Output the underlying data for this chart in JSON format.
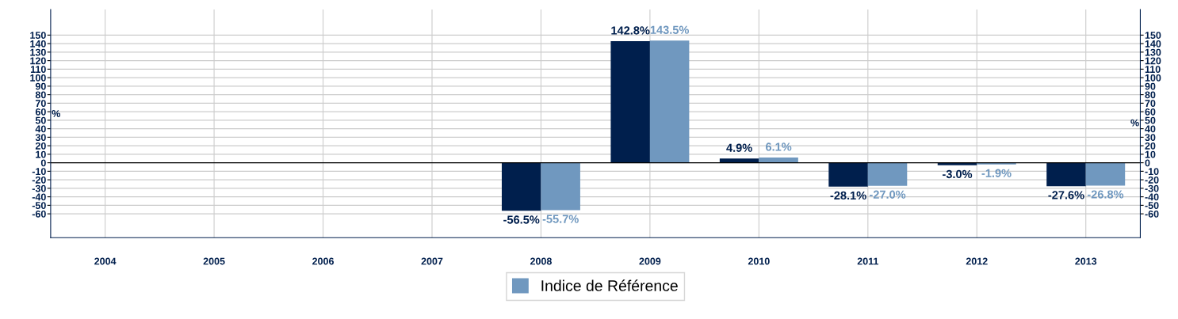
{
  "chart_data": {
    "type": "bar",
    "categories": [
      "2004",
      "2005",
      "2006",
      "2007",
      "2008",
      "2009",
      "2010",
      "2011",
      "2012",
      "2013"
    ],
    "series": [
      {
        "color": "#001f4d",
        "values": [
          null,
          null,
          null,
          null,
          -56.5,
          142.8,
          4.9,
          -28.1,
          -3.0,
          -27.6
        ],
        "value_labels": [
          null,
          null,
          null,
          null,
          "-56.5%",
          "142.8%",
          "4.9%",
          "-28.1%",
          "-3.0%",
          "-27.6%"
        ]
      },
      {
        "name": "Indice de Référence",
        "color": "#7098bf",
        "values": [
          null,
          null,
          null,
          null,
          -55.7,
          143.5,
          6.1,
          -27.0,
          -1.9,
          -26.8
        ],
        "value_labels": [
          null,
          null,
          null,
          null,
          "-55.7%",
          "143.5%",
          "6.1%",
          "-27.0%",
          "-1.9%",
          "-26.8%"
        ]
      }
    ],
    "ylabel": "%",
    "y2label": "%",
    "ylim": [
      -88,
      180
    ],
    "yticks": [
      -60,
      -50,
      -40,
      -30,
      -20,
      -10,
      0,
      10,
      20,
      30,
      40,
      50,
      60,
      70,
      80,
      90,
      100,
      110,
      120,
      130,
      140,
      150
    ],
    "y2lim": [
      -88,
      180
    ],
    "y2ticks": [
      -60,
      -50,
      -40,
      -30,
      -20,
      -10,
      0,
      10,
      20,
      30,
      40,
      50,
      60,
      70,
      80,
      90,
      100,
      110,
      120,
      130,
      140,
      150
    ],
    "grid": true,
    "legend": "bottom"
  }
}
